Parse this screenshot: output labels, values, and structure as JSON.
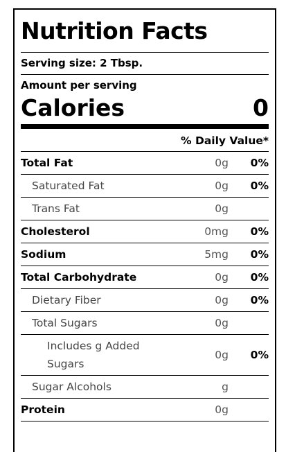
{
  "label": {
    "title": "Nutrition Facts",
    "serving_size": "Serving size: 2 Tbsp.",
    "amount_per_serving": "Amount per serving",
    "calories_label": "Calories",
    "calories_value": "0",
    "daily_value_header": "% Daily Value*",
    "nutrients": [
      {
        "name": "Total Fat",
        "amount": "0g",
        "percent": "0%"
      },
      {
        "name": "Saturated Fat",
        "amount": "0g",
        "percent": "0%"
      },
      {
        "name": "Trans Fat",
        "amount": "0g",
        "percent": ""
      },
      {
        "name": "Cholesterol",
        "amount": "0mg",
        "percent": "0%"
      },
      {
        "name": "Sodium",
        "amount": "5mg",
        "percent": "0%"
      },
      {
        "name": "Total Carbohydrate",
        "amount": "0g",
        "percent": "0%"
      },
      {
        "name": "Dietary Fiber",
        "amount": "0g",
        "percent": "0%"
      },
      {
        "name": "Total Sugars",
        "amount": "0g",
        "percent": ""
      },
      {
        "name": "Includes g Added Sugars",
        "amount": "0g",
        "percent": "0%"
      },
      {
        "name": "Sugar Alcohols",
        "amount": "g",
        "percent": ""
      },
      {
        "name": "Protein",
        "amount": "0g",
        "percent": ""
      }
    ]
  }
}
